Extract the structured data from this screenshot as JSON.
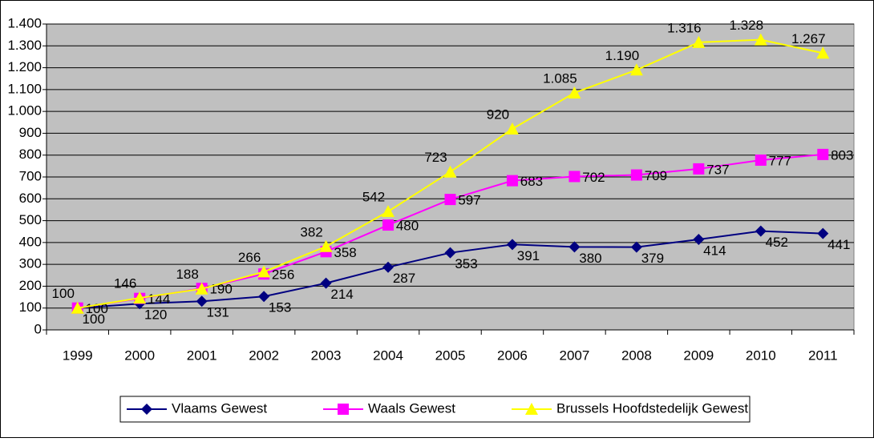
{
  "chart_data": {
    "type": "line",
    "categories": [
      "1999",
      "2000",
      "2001",
      "2002",
      "2003",
      "2004",
      "2005",
      "2006",
      "2007",
      "2008",
      "2009",
      "2010",
      "2011"
    ],
    "series": [
      {
        "name": "Vlaams Gewest",
        "color": "#000080",
        "marker": "diamond",
        "values": [
          100,
          120,
          131,
          153,
          214,
          287,
          353,
          391,
          380,
          379,
          414,
          452,
          441
        ]
      },
      {
        "name": "Waals Gewest",
        "color": "#ff00ff",
        "marker": "square",
        "values": [
          100,
          144,
          190,
          256,
          358,
          480,
          597,
          683,
          702,
          709,
          737,
          777,
          803
        ]
      },
      {
        "name": "Brussels Hoofdstedelijk Gewest",
        "color": "#ffff00",
        "marker": "triangle",
        "values": [
          100,
          146,
          188,
          266,
          382,
          542,
          723,
          920,
          1085,
          1190,
          1316,
          1328,
          1267
        ],
        "value_labels": [
          "100",
          "146",
          "188",
          "266",
          "382",
          "542",
          "723",
          "920",
          "1.085",
          "1.190",
          "1.316",
          "1.328",
          "1.267"
        ]
      }
    ],
    "ylim": [
      0,
      1400
    ],
    "yticks": [
      0,
      100,
      200,
      300,
      400,
      500,
      600,
      700,
      800,
      900,
      {
        "value": 1000,
        "label": "1.000"
      },
      {
        "value": 1100,
        "label": "1.100"
      },
      {
        "value": 1200,
        "label": "1.200"
      },
      {
        "value": 1300,
        "label": "1.300"
      },
      {
        "value": 1400,
        "label": "1.400"
      }
    ],
    "grid": true,
    "plot_background": "#c0c0c0",
    "legend": "bottom"
  }
}
